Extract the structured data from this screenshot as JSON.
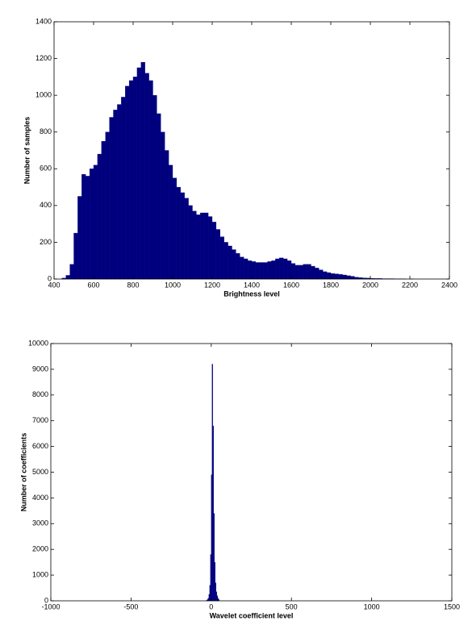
{
  "chart_data": [
    {
      "type": "histogram",
      "xlabel": "Brightness level",
      "ylabel": "Number of samples",
      "color": "#00007f",
      "bins": [
        440,
        460,
        480,
        500,
        520,
        540,
        560,
        580,
        600,
        620,
        640,
        660,
        680,
        700,
        720,
        740,
        760,
        780,
        800,
        820,
        840,
        860,
        880,
        900,
        920,
        940,
        960,
        980,
        1000,
        1020,
        1040,
        1060,
        1080,
        1100,
        1120,
        1140,
        1160,
        1180,
        1200,
        1220,
        1240,
        1260,
        1280,
        1300,
        1320,
        1340,
        1360,
        1380,
        1400,
        1420,
        1440,
        1460,
        1480,
        1500,
        1520,
        1540,
        1560,
        1580,
        1600,
        1620,
        1640,
        1660,
        1680,
        1700,
        1720,
        1740,
        1760,
        1780,
        1800,
        1820,
        1840,
        1860,
        1880,
        1900,
        1920,
        1940,
        1960,
        1980,
        2000,
        2020,
        2040,
        2060,
        2080,
        2100,
        2120,
        2140,
        2160,
        2180,
        2200,
        2220,
        2240
      ],
      "counts": [
        5,
        20,
        80,
        250,
        450,
        570,
        560,
        600,
        620,
        680,
        750,
        800,
        880,
        920,
        950,
        990,
        1050,
        1080,
        1100,
        1150,
        1180,
        1120,
        1080,
        1000,
        900,
        800,
        700,
        620,
        550,
        500,
        470,
        440,
        400,
        370,
        350,
        360,
        360,
        340,
        310,
        270,
        230,
        200,
        180,
        160,
        140,
        120,
        110,
        100,
        95,
        90,
        90,
        90,
        95,
        100,
        110,
        115,
        110,
        100,
        85,
        75,
        75,
        80,
        80,
        70,
        60,
        50,
        40,
        35,
        30,
        28,
        25,
        22,
        18,
        15,
        10,
        8,
        6,
        5,
        4,
        3,
        3,
        2,
        2,
        2,
        1,
        1,
        1,
        0,
        1,
        0
      ],
      "xlim": [
        400,
        2400
      ],
      "xticks": [
        400,
        600,
        800,
        1000,
        1200,
        1400,
        1600,
        1800,
        2000,
        2200,
        2400
      ],
      "ylim": [
        0,
        1400
      ],
      "yticks": [
        0,
        200,
        400,
        600,
        800,
        1000,
        1200,
        1400
      ]
    },
    {
      "type": "histogram",
      "xlabel": "Wavelet coefficient level",
      "ylabel": "Number of coefficients",
      "color": "#00007f",
      "bins": [
        -30,
        -25,
        -20,
        -15,
        -10,
        -5,
        0,
        5,
        10,
        15,
        20,
        25,
        30,
        35,
        40,
        45,
        50
      ],
      "counts": [
        20,
        50,
        100,
        250,
        600,
        1800,
        4900,
        9200,
        6800,
        3400,
        1500,
        700,
        350,
        200,
        100,
        50
      ],
      "xlim": [
        -1000,
        1500
      ],
      "xticks": [
        -1000,
        -500,
        0,
        500,
        1000,
        1500
      ],
      "ylim": [
        0,
        10000
      ],
      "yticks": [
        0,
        1000,
        2000,
        3000,
        4000,
        5000,
        6000,
        7000,
        8000,
        9000,
        10000
      ]
    }
  ]
}
